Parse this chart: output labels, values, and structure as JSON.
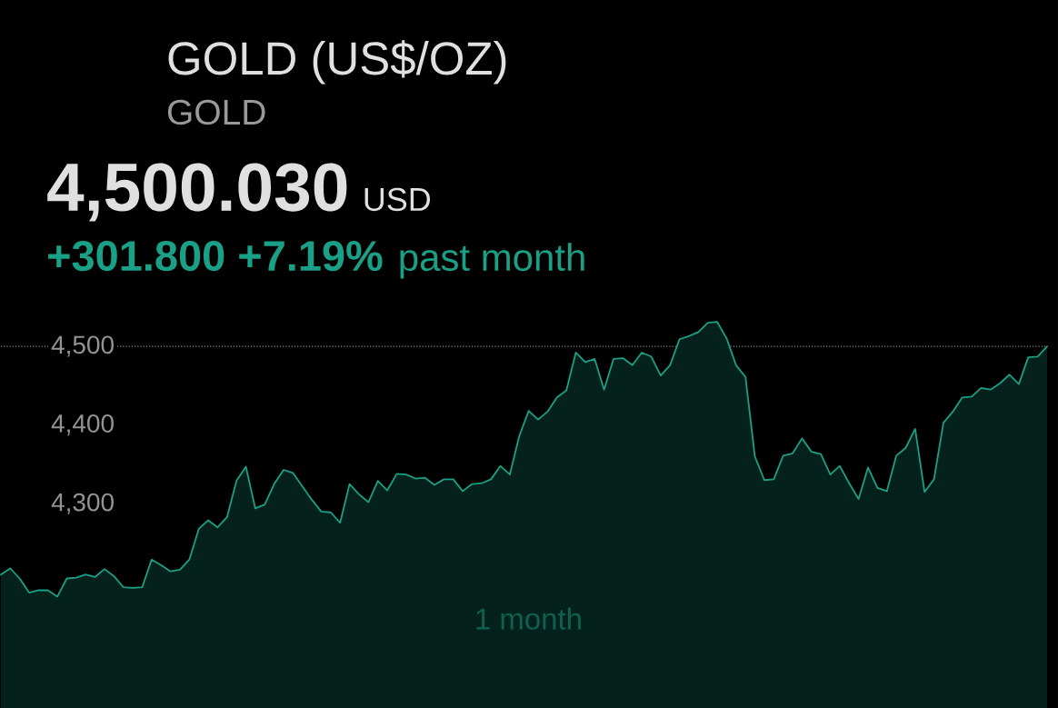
{
  "chart_data": {
    "type": "area",
    "title": "GOLD (US$/OZ)",
    "subtitle": "GOLD",
    "annotations": [
      "4,500.030",
      "USD",
      "+301.800 +7.19%",
      "past month",
      "1 month"
    ],
    "categories": [
      null,
      null,
      null,
      null,
      null,
      null,
      null,
      null,
      null,
      null,
      null,
      null,
      null,
      null,
      null,
      null,
      null,
      null,
      null,
      null,
      null,
      null,
      null,
      null,
      null,
      null,
      null,
      null,
      null,
      null,
      null,
      null,
      null,
      null,
      null,
      null,
      null,
      null,
      null,
      null,
      null,
      null,
      null,
      null,
      null,
      null,
      null,
      null,
      null,
      null,
      null,
      null,
      null,
      null,
      null,
      null,
      null,
      null,
      null,
      null,
      null,
      null,
      null,
      null,
      null,
      null,
      null,
      null,
      null,
      null,
      null,
      null,
      null,
      null,
      null,
      null,
      null,
      null,
      null,
      null,
      null,
      null,
      null,
      null,
      null,
      null,
      null,
      null,
      null,
      null,
      null,
      null,
      null,
      null,
      null,
      null,
      null,
      null,
      null,
      null,
      null,
      null,
      null,
      null,
      null,
      null,
      null,
      null,
      null,
      null,
      null,
      null
    ],
    "values": [
      4210,
      4218,
      4205,
      4187,
      4190,
      4190,
      4182,
      4205,
      4206,
      4210,
      4207,
      4217,
      4208,
      4194,
      4193,
      4194,
      4229,
      4222,
      4214,
      4216,
      4229,
      4268,
      4279,
      4270,
      4283,
      4329,
      4347,
      4294,
      4299,
      4325,
      4343,
      4339,
      4322,
      4305,
      4290,
      4289,
      4276,
      4325,
      4312,
      4302,
      4329,
      4317,
      4338,
      4337,
      4332,
      4333,
      4324,
      4331,
      4331,
      4316,
      4325,
      4326,
      4331,
      4348,
      4337,
      4386,
      4418,
      4407,
      4417,
      4435,
      4444,
      4492,
      4480,
      4484,
      4445,
      4484,
      4485,
      4476,
      4492,
      4487,
      4463,
      4476,
      4509,
      4513,
      4518,
      4530,
      4531,
      4510,
      4476,
      4461,
      4360,
      4330,
      4331,
      4361,
      4364,
      4383,
      4366,
      4363,
      4337,
      4348,
      4326,
      4306,
      4346,
      4320,
      4316,
      4361,
      4371,
      4395,
      4315,
      4331,
      4403,
      4417,
      4435,
      4436,
      4447,
      4445,
      4453,
      4464,
      4452,
      4486,
      4487,
      4500
    ],
    "color": "#1aa086",
    "ylim": [
      4040,
      4940
    ],
    "yticks": [
      {
        "value": 4300,
        "label": "4,300"
      },
      {
        "value": 4400,
        "label": "4,400"
      },
      {
        "value": 4500,
        "label": "4,500"
      }
    ],
    "tick_labels": "y",
    "ref_lines": [
      {
        "axis": "y",
        "value": 4500,
        "color": "#8a8a8a",
        "line_style": "dotted"
      }
    ]
  }
}
